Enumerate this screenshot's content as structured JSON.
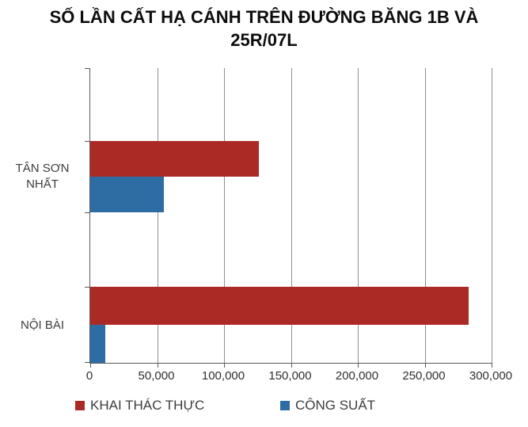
{
  "chart_data": {
    "type": "bar",
    "orientation": "horizontal",
    "title": "SỐ LẦN CẤT HẠ CÁNH TRÊN ĐƯỜNG BĂNG 1B VÀ 25R/07L",
    "categories": [
      "TÂN SƠN NHẤT",
      "NỘI BÀI"
    ],
    "series": [
      {
        "name": "KHAI THÁC THỰC",
        "color": "#AC2A25",
        "values": [
          126000,
          283000
        ]
      },
      {
        "name": "CÔNG SUẤT",
        "color": "#2E6DA4",
        "values": [
          55000,
          11000
        ]
      }
    ],
    "xlim": [
      0,
      300000
    ],
    "x_tick_labels": [
      "0",
      "50,000",
      "100,000",
      "150,000",
      "200,000",
      "250,000",
      "300,000"
    ],
    "grid": "vertical-only",
    "legend_position": "bottom",
    "axis_color": "#595959",
    "gridline_color": "#8f8f8f"
  }
}
